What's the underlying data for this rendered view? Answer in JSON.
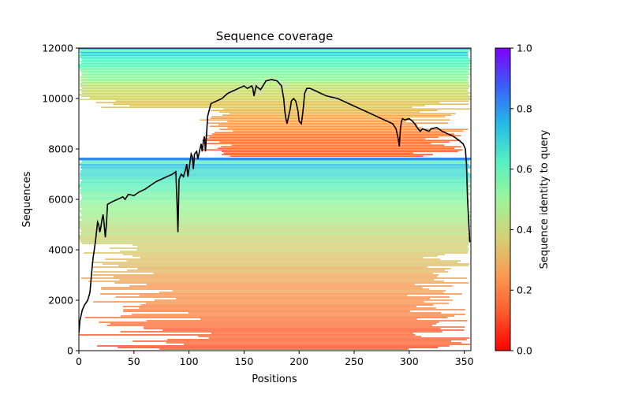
{
  "chart_data": {
    "type": "heatmap",
    "title": "Sequence coverage",
    "xlabel": "Positions",
    "ylabel": "Sequences",
    "xlim": [
      0,
      356
    ],
    "ylim": [
      0,
      12000
    ],
    "xticks": [
      "0",
      "50",
      "100",
      "150",
      "200",
      "250",
      "300",
      "350"
    ],
    "xtick_values": [
      0,
      50,
      100,
      150,
      200,
      250,
      300,
      350
    ],
    "yticks": [
      "0",
      "2000",
      "4000",
      "6000",
      "8000",
      "10000",
      "12000"
    ],
    "ytick_values": [
      0,
      2000,
      4000,
      6000,
      8000,
      10000,
      12000
    ],
    "colorbar": {
      "label": "Sequence identity to query",
      "range": [
        0.0,
        1.0
      ],
      "ticks": [
        "0.0",
        "0.2",
        "0.4",
        "0.6",
        "0.8",
        "1.0"
      ],
      "tick_values": [
        0.0,
        0.2,
        0.4,
        0.6,
        0.8,
        1.0
      ],
      "colormap": "rainbow_r"
    },
    "blocks": [
      {
        "name": "block-1",
        "y_start": 0,
        "y_end": 7650,
        "identity_bottom": 0.12,
        "identity_top": 0.85
      },
      {
        "name": "block-2",
        "y_start": 7650,
        "y_end": 12050,
        "identity_bottom": 0.12,
        "identity_top": 0.85
      }
    ],
    "coverage_line": {
      "color": "#000000",
      "x": [
        0,
        1,
        3,
        5,
        8,
        10,
        12,
        13,
        15,
        16,
        17,
        18,
        19,
        20,
        21,
        22,
        23,
        24,
        25,
        26,
        30,
        35,
        40,
        42,
        45,
        50,
        55,
        60,
        65,
        70,
        75,
        80,
        85,
        88,
        89,
        90,
        91,
        93,
        95,
        97,
        98,
        99,
        100,
        101,
        102,
        103,
        104,
        105,
        107,
        108,
        110,
        111,
        112,
        113,
        114,
        115,
        117,
        120,
        125,
        130,
        135,
        140,
        145,
        150,
        153,
        155,
        157,
        158,
        159,
        160,
        161,
        162,
        165,
        170,
        175,
        180,
        184,
        186,
        187,
        188,
        189,
        190,
        192,
        193,
        195,
        197,
        199,
        200,
        202,
        203,
        204,
        205,
        207,
        210,
        215,
        220,
        225,
        230,
        235,
        240,
        245,
        250,
        255,
        260,
        265,
        270,
        275,
        280,
        285,
        288,
        289,
        290,
        291,
        292,
        293,
        294,
        296,
        300,
        303,
        305,
        308,
        310,
        312,
        315,
        318,
        320,
        325,
        330,
        335,
        340,
        345,
        349,
        350,
        351,
        352,
        353,
        355
      ],
      "y": [
        700,
        1200,
        1600,
        1800,
        2000,
        2300,
        3300,
        3700,
        4300,
        4700,
        5100,
        5000,
        4700,
        4900,
        5200,
        5400,
        5000,
        4500,
        5000,
        5800,
        5900,
        6000,
        6100,
        6000,
        6200,
        6150,
        6300,
        6400,
        6550,
        6700,
        6800,
        6900,
        7000,
        7100,
        6000,
        4700,
        6800,
        7000,
        6900,
        7200,
        7400,
        6900,
        7200,
        7500,
        7800,
        7700,
        7200,
        7800,
        7900,
        7600,
        8000,
        8200,
        7900,
        8300,
        8500,
        7900,
        9300,
        9800,
        9900,
        10000,
        10200,
        10300,
        10400,
        10500,
        10400,
        10450,
        10500,
        10400,
        10100,
        10300,
        10500,
        10450,
        10350,
        10700,
        10750,
        10700,
        10500,
        10000,
        9500,
        9200,
        9000,
        9200,
        9600,
        9900,
        10000,
        9900,
        9500,
        9100,
        9000,
        9300,
        9700,
        10200,
        10400,
        10400,
        10300,
        10200,
        10100,
        10050,
        10000,
        9900,
        9800,
        9700,
        9600,
        9500,
        9400,
        9300,
        9200,
        9100,
        9000,
        8800,
        8600,
        8400,
        8100,
        8800,
        9100,
        9200,
        9150,
        9200,
        9100,
        9000,
        8800,
        8700,
        8800,
        8750,
        8700,
        8800,
        8850,
        8700,
        8600,
        8500,
        8350,
        8200,
        8100,
        8000,
        7400,
        6000,
        4300
      ]
    },
    "legend": "none",
    "grid": false
  }
}
